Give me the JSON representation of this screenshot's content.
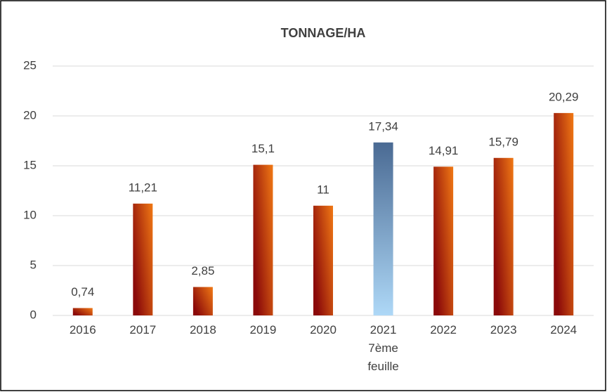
{
  "chart_data": {
    "type": "bar",
    "title": "TONNAGE/HA",
    "categories": [
      "2016",
      "2017",
      "2018",
      "2019",
      "2020",
      "2021\n7ème\nfeuille",
      "2022",
      "2023",
      "2024"
    ],
    "values": [
      0.74,
      11.21,
      2.85,
      15.1,
      11,
      17.34,
      14.91,
      15.79,
      20.29
    ],
    "value_labels": [
      "0,74",
      "11,21",
      "2,85",
      "15,1",
      "11",
      "17,34",
      "14,91",
      "15,79",
      "20,29"
    ],
    "colors": [
      "#8b0a0a",
      "#8b0a0a",
      "#8b0a0a",
      "#8b0a0a",
      "#8b0a0a",
      "#4a6a93",
      "#8b0a0a",
      "#8b0a0a",
      "#8b0a0a"
    ],
    "ylim": [
      0,
      25
    ],
    "yticks": [
      0,
      5,
      10,
      15,
      20,
      25
    ],
    "grid": true
  }
}
